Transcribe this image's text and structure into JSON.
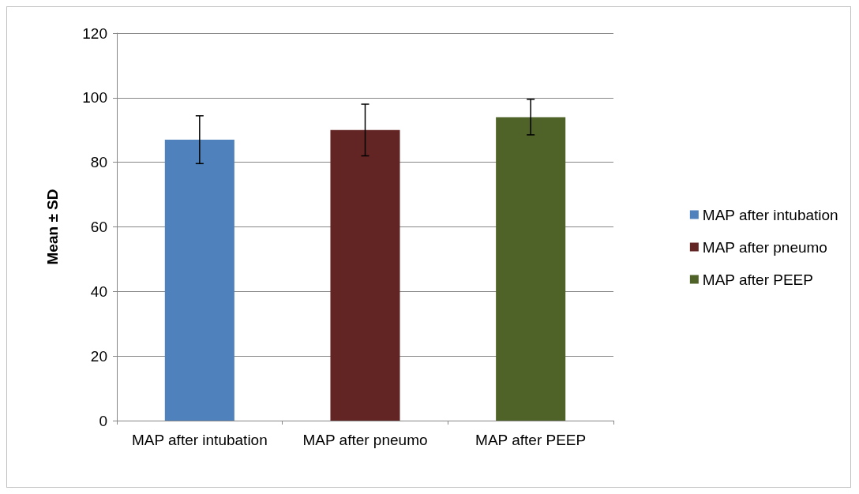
{
  "chart_data": {
    "type": "bar",
    "ylabel": "Mean ± SD",
    "categories": [
      "MAP after intubation",
      "MAP after pneumo",
      "MAP after PEEP"
    ],
    "series": [
      {
        "name": "MAP after intubation",
        "color": "#4f81bd",
        "values": [
          87,
          null,
          null
        ],
        "errors": [
          7.4,
          null,
          null
        ]
      },
      {
        "name": "MAP after pneumo",
        "color": "#632523",
        "values": [
          null,
          90,
          null
        ],
        "errors": [
          null,
          8,
          null
        ]
      },
      {
        "name": "MAP after PEEP",
        "color": "#4f6228",
        "values": [
          null,
          null,
          94
        ],
        "errors": [
          null,
          null,
          5.5
        ]
      }
    ],
    "ylim": [
      0,
      120
    ],
    "yticks": [
      0,
      20,
      40,
      60,
      80,
      100,
      120
    ],
    "grid": "y",
    "legend": "right"
  }
}
